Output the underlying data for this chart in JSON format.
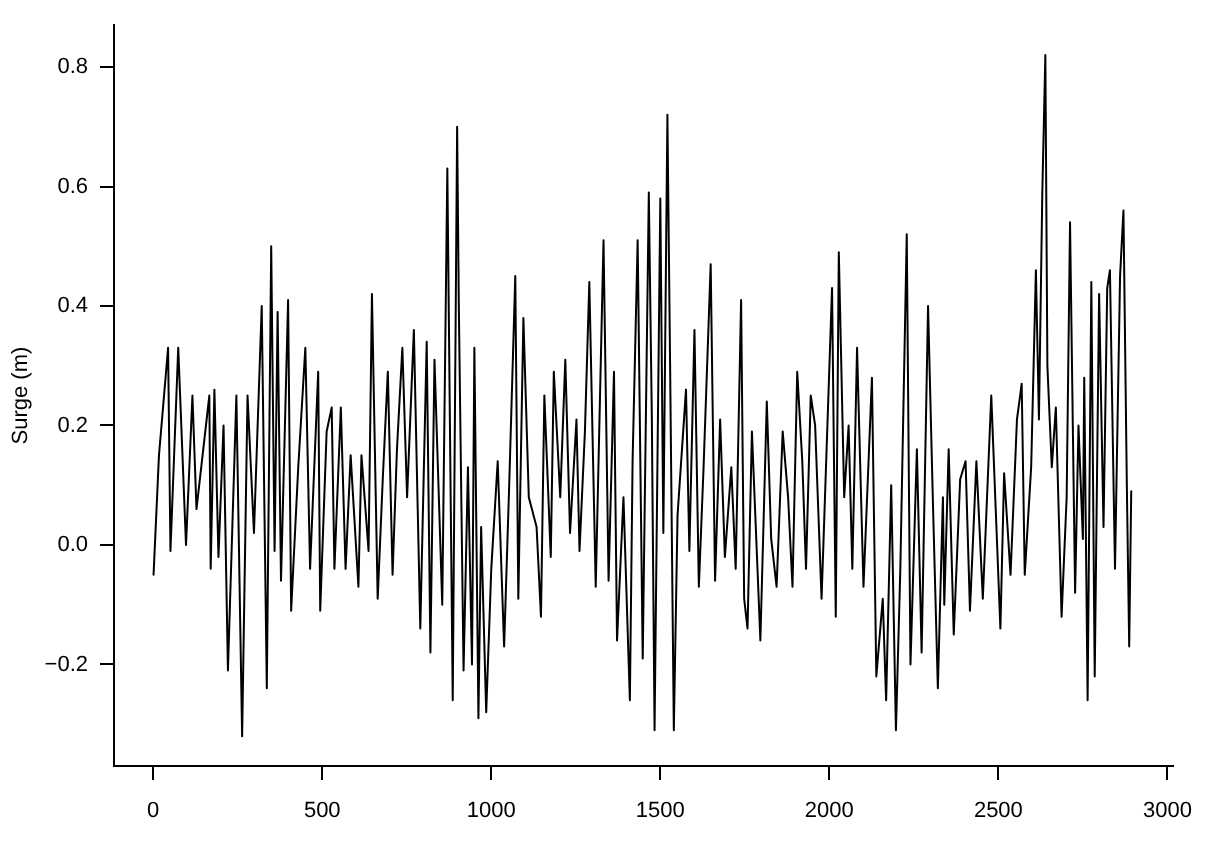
{
  "chart_data": {
    "type": "line",
    "ylabel": "Surge (m)",
    "x": [
      1,
      17,
      44,
      51,
      74,
      97,
      116,
      128,
      166,
      170,
      181,
      193,
      208,
      221,
      246,
      263,
      279,
      298,
      321,
      336,
      349,
      359,
      368,
      378,
      399,
      408,
      429,
      450,
      464,
      488,
      494,
      513,
      528,
      536,
      555,
      569,
      584,
      607,
      616,
      637,
      647,
      664,
      679,
      694,
      708,
      721,
      737,
      751,
      771,
      790,
      809,
      820,
      832,
      855,
      870,
      886,
      899,
      904,
      918,
      931,
      943,
      950,
      962,
      970,
      985,
      1000,
      1019,
      1038,
      1053,
      1071,
      1080,
      1095,
      1111,
      1134,
      1147,
      1157,
      1176,
      1185,
      1204,
      1219,
      1233,
      1252,
      1261,
      1277,
      1290,
      1309,
      1332,
      1347,
      1363,
      1372,
      1391,
      1410,
      1418,
      1433,
      1448,
      1466,
      1475,
      1483,
      1500,
      1509,
      1521,
      1529,
      1540,
      1551,
      1576,
      1586,
      1601,
      1614,
      1628,
      1649,
      1662,
      1677,
      1691,
      1710,
      1723,
      1739,
      1748,
      1758,
      1771,
      1796,
      1815,
      1828,
      1844,
      1862,
      1878,
      1891,
      1905,
      1920,
      1931,
      1945,
      1958,
      1977,
      2008,
      2019,
      2028,
      2044,
      2057,
      2068,
      2082,
      2101,
      2126,
      2139,
      2158,
      2168,
      2183,
      2197,
      2210,
      2229,
      2240,
      2259,
      2273,
      2292,
      2306,
      2321,
      2336,
      2340,
      2353,
      2368,
      2387,
      2403,
      2416,
      2435,
      2454,
      2479,
      2506,
      2517,
      2536,
      2555,
      2569,
      2578,
      2597,
      2611,
      2620,
      2630,
      2639,
      2645,
      2658,
      2670,
      2687,
      2702,
      2712,
      2727,
      2737,
      2750,
      2754,
      2764,
      2775,
      2785,
      2798,
      2811,
      2822,
      2830,
      2845,
      2860,
      2870,
      2880,
      2887,
      2893
    ],
    "series": [
      {
        "color": "#000000",
        "values": [
          -0.05,
          0.15,
          0.33,
          -0.01,
          0.33,
          0,
          0.25,
          0.06,
          0.25,
          -0.04,
          0.26,
          -0.02,
          0.2,
          -0.21,
          0.25,
          -0.32,
          0.25,
          0.02,
          0.4,
          -0.24,
          0.5,
          -0.01,
          0.39,
          -0.06,
          0.41,
          -0.11,
          0.13,
          0.33,
          -0.04,
          0.29,
          -0.11,
          0.19,
          0.23,
          -0.04,
          0.23,
          -0.04,
          0.15,
          -0.07,
          0.15,
          -0.01,
          0.42,
          -0.09,
          0.11,
          0.29,
          -0.05,
          0.16,
          0.33,
          0.08,
          0.36,
          -0.14,
          0.34,
          -0.18,
          0.31,
          -0.1,
          0.63,
          -0.26,
          0.7,
          0.4,
          -0.21,
          0.13,
          -0.2,
          0.33,
          -0.29,
          0.03,
          -0.28,
          -0.04,
          0.14,
          -0.17,
          0.1,
          0.45,
          -0.09,
          0.38,
          0.08,
          0.03,
          -0.12,
          0.25,
          -0.02,
          0.29,
          0.08,
          0.31,
          0.02,
          0.21,
          -0.01,
          0.19,
          0.44,
          -0.07,
          0.51,
          -0.06,
          0.29,
          -0.16,
          0.08,
          -0.26,
          0.14,
          0.51,
          -0.19,
          0.59,
          0.21,
          -0.31,
          0.58,
          0.02,
          0.72,
          0.3,
          -0.31,
          0.05,
          0.26,
          -0.01,
          0.36,
          -0.07,
          0.13,
          0.47,
          -0.06,
          0.21,
          -0.02,
          0.13,
          -0.04,
          0.41,
          -0.09,
          -0.14,
          0.19,
          -0.16,
          0.24,
          0.01,
          -0.07,
          0.19,
          0.08,
          -0.07,
          0.29,
          0.14,
          -0.04,
          0.25,
          0.2,
          -0.09,
          0.43,
          -0.12,
          0.49,
          0.08,
          0.2,
          -0.04,
          0.33,
          -0.07,
          0.28,
          -0.22,
          -0.09,
          -0.26,
          0.1,
          -0.31,
          -0.04,
          0.52,
          -0.2,
          0.16,
          -0.18,
          0.4,
          0.08,
          -0.24,
          0.08,
          -0.1,
          0.16,
          -0.15,
          0.11,
          0.14,
          -0.11,
          0.14,
          -0.09,
          0.25,
          -0.14,
          0.12,
          -0.05,
          0.21,
          0.27,
          -0.05,
          0.13,
          0.46,
          0.21,
          0.59,
          0.82,
          0.3,
          0.13,
          0.23,
          -0.12,
          0.08,
          0.54,
          -0.08,
          0.2,
          0.01,
          0.28,
          -0.26,
          0.44,
          -0.22,
          0.42,
          0.03,
          0.43,
          0.46,
          -0.04,
          0.45,
          0.56,
          0.1,
          -0.17,
          0.09
        ]
      }
    ],
    "xlim": [
      -116,
      3016
    ],
    "ylim": [
      -0.37,
      0.87
    ],
    "xticks": [
      0,
      500,
      1000,
      1500,
      2000,
      2500,
      3000
    ],
    "yticks": [
      {
        "value": -0.2,
        "label": "−0.2"
      },
      {
        "value": 0,
        "label": "0.0"
      },
      {
        "value": 0.2,
        "label": "0.2"
      },
      {
        "value": 0.4,
        "label": "0.4"
      },
      {
        "value": 0.6,
        "label": "0.6"
      },
      {
        "value": 0.8,
        "label": "0.8"
      }
    ],
    "grid": false,
    "legend": false,
    "marker": "none",
    "line_style": "solid"
  }
}
